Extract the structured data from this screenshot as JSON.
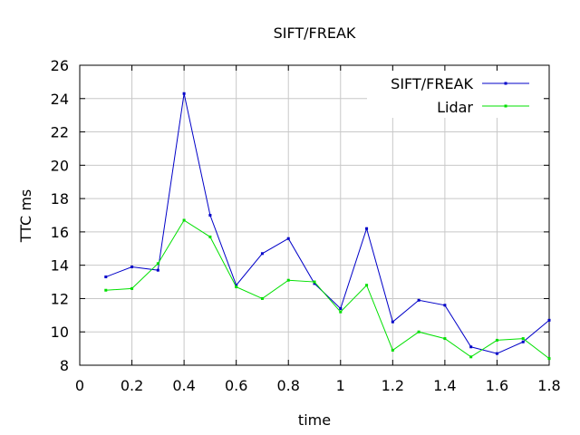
{
  "chart_data": {
    "type": "line",
    "title": "SIFT/FREAK",
    "xlabel": "time",
    "ylabel": "TTC ms",
    "xlim": [
      0,
      1.8
    ],
    "ylim": [
      8,
      26
    ],
    "x_ticks": [
      "0",
      "0.2",
      "0.4",
      "0.6",
      "0.8",
      "1",
      "1.2",
      "1.4",
      "1.6",
      "1.8"
    ],
    "y_ticks": [
      "8",
      "10",
      "12",
      "14",
      "16",
      "18",
      "20",
      "22",
      "24",
      "26"
    ],
    "grid": true,
    "legend_position": "top-right",
    "x": [
      0.1,
      0.2,
      0.3,
      0.4,
      0.5,
      0.6,
      0.7,
      0.8,
      0.9,
      1.0,
      1.1,
      1.2,
      1.3,
      1.4,
      1.5,
      1.6,
      1.7,
      1.8
    ],
    "series": [
      {
        "name": "SIFT/FREAK",
        "color": "#0000c8",
        "values": [
          13.3,
          13.9,
          13.7,
          24.3,
          17.0,
          12.8,
          14.7,
          15.6,
          12.9,
          11.4,
          16.2,
          10.6,
          11.9,
          11.6,
          9.1,
          8.7,
          9.4,
          10.7
        ]
      },
      {
        "name": "Lidar",
        "color": "#00e000",
        "values": [
          12.5,
          12.6,
          14.1,
          16.7,
          15.7,
          12.7,
          12.0,
          13.1,
          13.0,
          11.2,
          12.8,
          8.9,
          10.0,
          9.6,
          8.5,
          9.5,
          9.6,
          8.4
        ]
      }
    ]
  }
}
